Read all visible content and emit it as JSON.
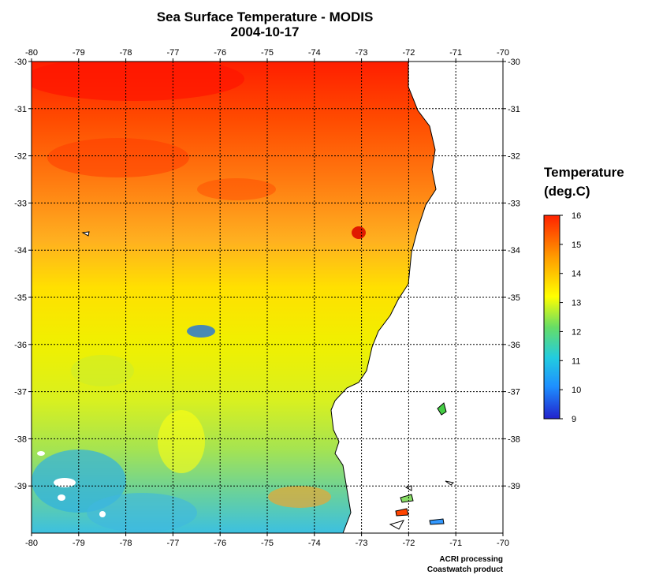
{
  "title": "Sea Surface Temperature - MODIS",
  "date": "2004-10-17",
  "map": {
    "lon_range": [
      -80,
      -70
    ],
    "lat_range": [
      -40,
      -30
    ],
    "lon_ticks": [
      "-80",
      "-79",
      "-78",
      "-77",
      "-76",
      "-75",
      "-74",
      "-73",
      "-72",
      "-71",
      "-70"
    ],
    "lat_ticks": [
      "-30",
      "-31",
      "-32",
      "-33",
      "-34",
      "-35",
      "-36",
      "-37",
      "-38",
      "-39"
    ],
    "grid": true,
    "land_color": "#ffffff",
    "coast_color": "#000000"
  },
  "legend": {
    "title_line1": "Temperature",
    "title_line2": "(deg.C)",
    "labels": [
      "16",
      "15",
      "14",
      "13",
      "12",
      "11",
      "10",
      "9"
    ],
    "min": 9,
    "max": 16,
    "colors": [
      "#2222cc",
      "#1e90ff",
      "#22cce0",
      "#66dd66",
      "#ffff00",
      "#ff9900",
      "#ff2200"
    ]
  },
  "credits": {
    "line1": "ACRI processing",
    "line2": "Coastwatch product"
  }
}
